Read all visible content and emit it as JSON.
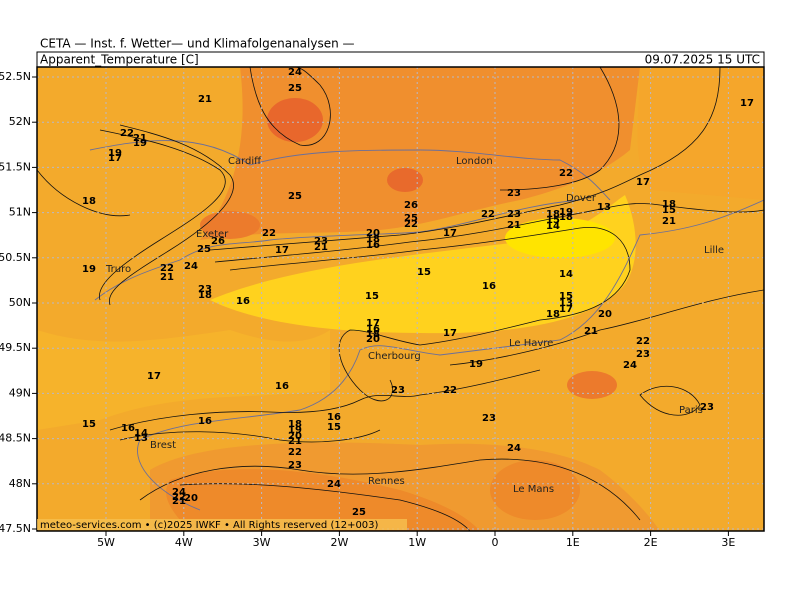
{
  "header": {
    "title": "CETA — Inst. f. Wetter— und Klimafolgenanalysen —",
    "parameter": "Apparent_Temperature [C]",
    "valid_time": "09.07.2025 15 UTC"
  },
  "axes": {
    "lon_ticks": [
      "5W",
      "4W",
      "3W",
      "2W",
      "1W",
      "0",
      "1E",
      "2E",
      "3E"
    ],
    "lat_ticks": [
      "52.5N",
      "52N",
      "51.5N",
      "51N",
      "50.5N",
      "50N",
      "49.5N",
      "49N",
      "48.5N",
      "48N",
      "47.5N"
    ]
  },
  "cities": [
    "Cardiff",
    "London",
    "Dover",
    "Exeter",
    "Truro",
    "Lille",
    "Le Havre",
    "Cherbourg",
    "Brest",
    "Rennes",
    "Le Mans",
    "Paris"
  ],
  "contour_labels": [
    24,
    25,
    21,
    17,
    22,
    21,
    19,
    19,
    17,
    18,
    25,
    26,
    25,
    22,
    23,
    22,
    17,
    22,
    23,
    21,
    18,
    15,
    14,
    19,
    18,
    13,
    18,
    15,
    21,
    22,
    23,
    21,
    17,
    20,
    18,
    16,
    17,
    25,
    26,
    24,
    19,
    22,
    21,
    23,
    18,
    16,
    15,
    16,
    15,
    14,
    15,
    13,
    17,
    18,
    20,
    21,
    17,
    22,
    23,
    24,
    17,
    16,
    18,
    20,
    19,
    16,
    17,
    23,
    22,
    15,
    16,
    14,
    13,
    16,
    16,
    15,
    18,
    19,
    20,
    21,
    22,
    23,
    23,
    24,
    24,
    25,
    24,
    22,
    21,
    20,
    23
  ],
  "footer": "meteo-services.com • (c)2025 IWKF • All Rights reserved (12+003)"
}
